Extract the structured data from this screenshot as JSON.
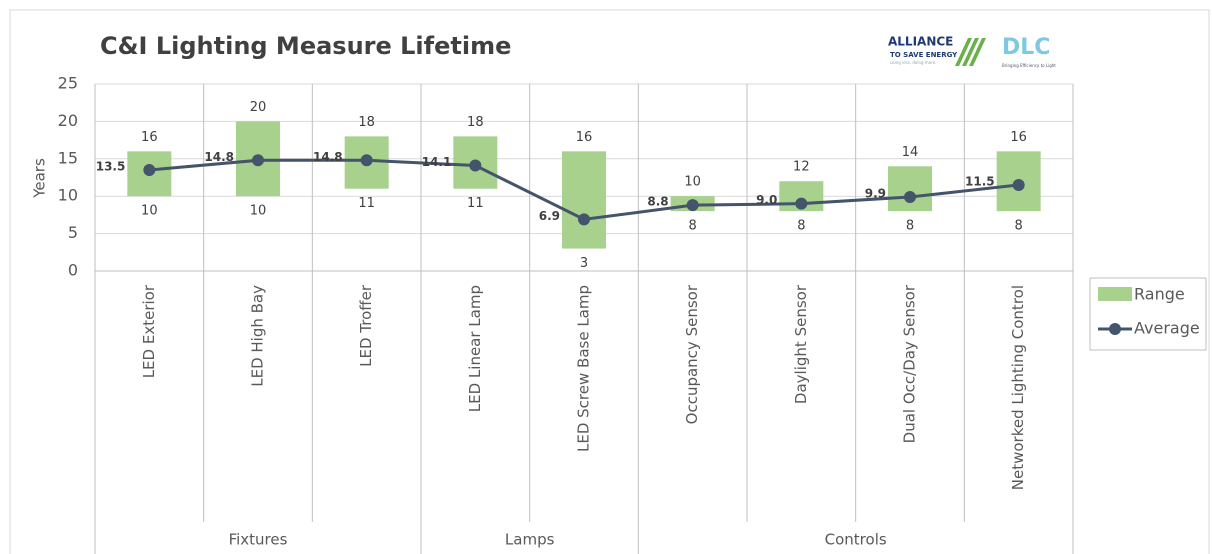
{
  "chart_data": {
    "type": "combo",
    "title": "C&I Lighting Measure Lifetime",
    "logos": {
      "alliance": "ALLIANCE",
      "alliance_sub": "TO SAVE ENERGY",
      "alliance_tag": "using less, doing more.",
      "dlc": "DLC",
      "dlc_tag": "Bringing Efficiency to Light"
    },
    "y_label": "Years",
    "groups": [
      {
        "name": "Fixtures",
        "categories": [
          "LED Exterior",
          "LED High Bay",
          "LED Troffer"
        ]
      },
      {
        "name": "Lamps",
        "categories": [
          "LED Linear Lamp",
          "LED Screw Base Lamp"
        ]
      },
      {
        "name": "Controls",
        "categories": [
          "Occupancy Sensor",
          "Daylight Sensor",
          "Dual Occ/Day Sensor",
          "Networked Lighting Control"
        ]
      }
    ],
    "series": [
      {
        "name": "Range",
        "color": "#a9d18e",
        "low": [
          10,
          10,
          11,
          11,
          3,
          8,
          8,
          8,
          8
        ],
        "high": [
          16,
          20,
          18,
          18,
          16,
          10,
          12,
          14,
          16
        ]
      },
      {
        "name": "Average",
        "color": "#44546a",
        "values": [
          13.5,
          14.8,
          14.8,
          14.1,
          6.9,
          8.8,
          9.0,
          9.9,
          11.5
        ],
        "value_labels": [
          "13.5",
          "14.8",
          "14.8",
          "14.1",
          "6.9",
          "8.8",
          "9.0",
          "9.9",
          "11.5"
        ]
      }
    ],
    "ylim": [
      0,
      25
    ],
    "yticks": [
      0,
      5,
      10,
      15,
      20,
      25
    ],
    "grid": true,
    "legend": "right"
  }
}
